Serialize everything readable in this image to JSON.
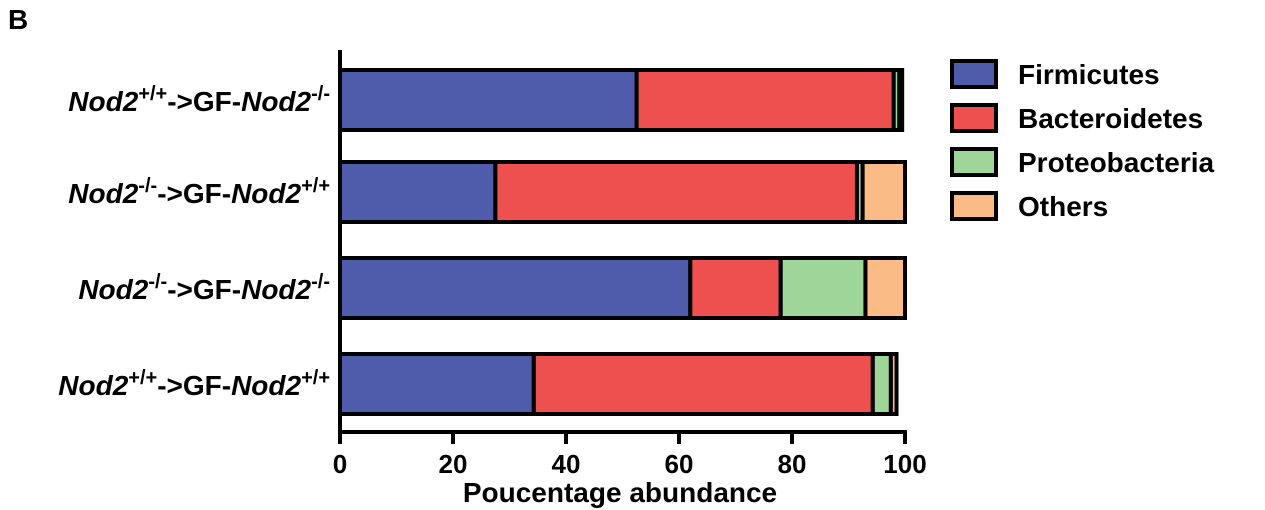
{
  "panel_label": "B",
  "chart_data": {
    "type": "bar",
    "orientation": "horizontal",
    "stacked": true,
    "categories": [
      {
        "pre": "Nod2",
        "pre_sup": "+/+",
        "mid": "->GF-",
        "post": "Nod2",
        "post_sup": "-/-"
      },
      {
        "pre": "Nod2",
        "pre_sup": "-/-",
        "mid": "->GF-",
        "post": "Nod2",
        "post_sup": "+/+"
      },
      {
        "pre": "Nod2",
        "pre_sup": "-/-",
        "mid": "->GF-",
        "post": "Nod2",
        "post_sup": "-/-"
      },
      {
        "pre": "Nod2",
        "pre_sup": "+/+",
        "mid": "->GF-",
        "post": "Nod2",
        "post_sup": "+/+"
      }
    ],
    "series": [
      {
        "name": "Firmicutes",
        "color": "#4f5bab",
        "values": [
          52.5,
          27.5,
          62,
          34.3
        ]
      },
      {
        "name": "Bacteroidetes",
        "color": "#ee5050",
        "values": [
          45.5,
          64,
          16,
          60
        ]
      },
      {
        "name": "Proteobacteria",
        "color": "#9ed699",
        "values": [
          1,
          1,
          15,
          3.2
        ]
      },
      {
        "name": "Others",
        "color": "#fbbb87",
        "values": [
          0.5,
          7.5,
          7,
          1
        ]
      }
    ],
    "xlabel": "Poucentage abundance",
    "xlim": [
      0,
      100
    ],
    "xticks": [
      0,
      20,
      40,
      60,
      80,
      100
    ],
    "legend_position": "top-right"
  }
}
